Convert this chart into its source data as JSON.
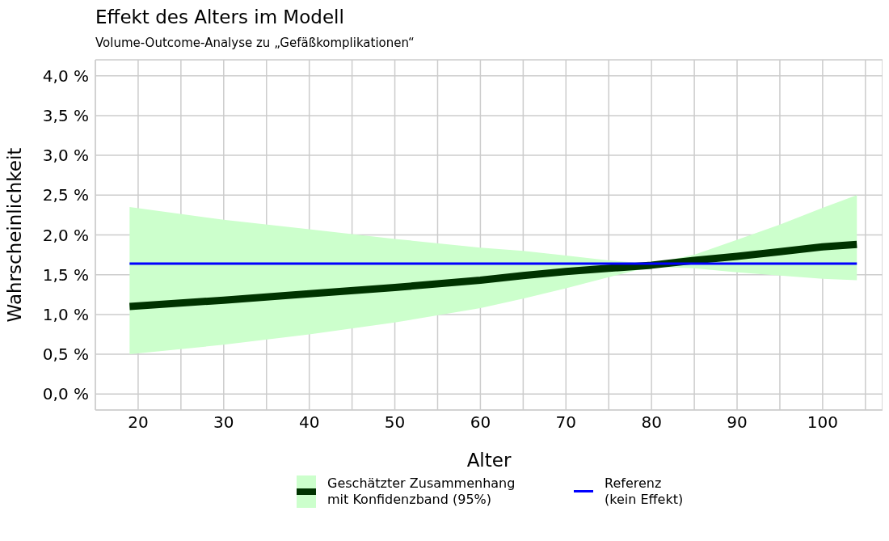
{
  "chart_data": {
    "type": "line",
    "title": "Effekt des Alters im Modell",
    "subtitle": "Volume-Outcome-Analyse zu „Gefäßkomplikationen“",
    "xlabel": "Alter",
    "ylabel": "Wahrscheinlichkeit",
    "x": [
      19,
      30,
      40,
      50,
      60,
      65,
      70,
      75,
      80,
      85,
      90,
      95,
      100,
      104
    ],
    "series": [
      {
        "name": "Geschätzter Zusammenhang mit Konfidenzband (95%)",
        "color": "#003300",
        "values": [
          1.1,
          1.18,
          1.26,
          1.34,
          1.43,
          1.49,
          1.54,
          1.58,
          1.62,
          1.68,
          1.73,
          1.79,
          1.85,
          1.88
        ],
        "lower": [
          0.5,
          0.62,
          0.75,
          0.9,
          1.08,
          1.2,
          1.33,
          1.47,
          1.6,
          1.58,
          1.53,
          1.49,
          1.45,
          1.43
        ],
        "upper": [
          2.35,
          2.19,
          2.07,
          1.95,
          1.84,
          1.8,
          1.74,
          1.68,
          1.64,
          1.75,
          1.94,
          2.13,
          2.34,
          2.5
        ]
      },
      {
        "name": "Referenz (kein Effekt)",
        "color": "#0000ff",
        "x": [
          19,
          104
        ],
        "values": [
          1.64,
          1.64
        ]
      }
    ],
    "xlim": [
      15,
      107
    ],
    "xticks": [
      20,
      {
        "value": 25,
        "label": null
      },
      30,
      {
        "value": 35,
        "label": null
      },
      40,
      {
        "value": 45,
        "label": null
      },
      50,
      {
        "value": 55,
        "label": null
      },
      60,
      {
        "value": 65,
        "label": null
      },
      70,
      {
        "value": 75,
        "label": null
      },
      80,
      {
        "value": 85,
        "label": null
      },
      90,
      {
        "value": 95,
        "label": null
      },
      100,
      {
        "value": 105,
        "label": null
      }
    ],
    "ylim": [
      -0.2,
      4.2
    ],
    "yticks": [
      {
        "value": 0,
        "label": "0,0 %"
      },
      {
        "value": 0.5,
        "label": "0,5 %"
      },
      {
        "value": 1,
        "label": "1,0 %"
      },
      {
        "value": 1.5,
        "label": "1,5 %"
      },
      {
        "value": 2,
        "label": "2,0 %"
      },
      {
        "value": 2.5,
        "label": "2,5 %"
      },
      {
        "value": 3,
        "label": "3,0 %"
      },
      {
        "value": 3.5,
        "label": "3,5 %"
      },
      {
        "value": 4,
        "label": "4,0 %"
      }
    ],
    "grid": true,
    "legend": "bottom",
    "marker": "none",
    "line_style": "solid"
  }
}
